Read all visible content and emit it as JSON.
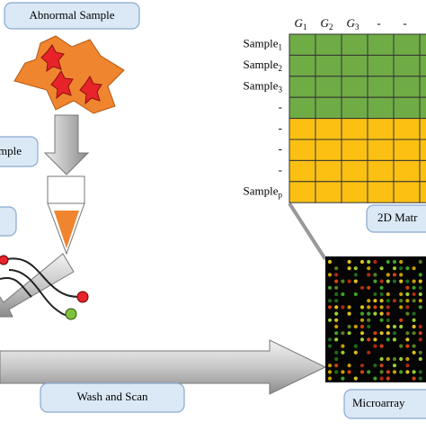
{
  "labels": {
    "abnormal_sample": "Abnormal Sample",
    "sample_cut": "mple",
    "wash_and_scan": "Wash and Scan",
    "matrix_label": "2D Matr",
    "microarray_label": "Microarray"
  },
  "matrix": {
    "columns": [
      {
        "text": "G",
        "sub": "1"
      },
      {
        "text": "G",
        "sub": "2"
      },
      {
        "text": "G",
        "sub": "3"
      },
      {
        "text": "-"
      },
      {
        "text": "-"
      }
    ],
    "rows": [
      {
        "text": "Sample",
        "sub": "1"
      },
      {
        "text": "Sample",
        "sub": "2"
      },
      {
        "text": "Sample",
        "sub": "3"
      },
      {
        "text": "-"
      },
      {
        "text": "-"
      },
      {
        "text": "-"
      },
      {
        "text": "-"
      },
      {
        "text": "Sample",
        "sub": "p"
      }
    ]
  }
}
